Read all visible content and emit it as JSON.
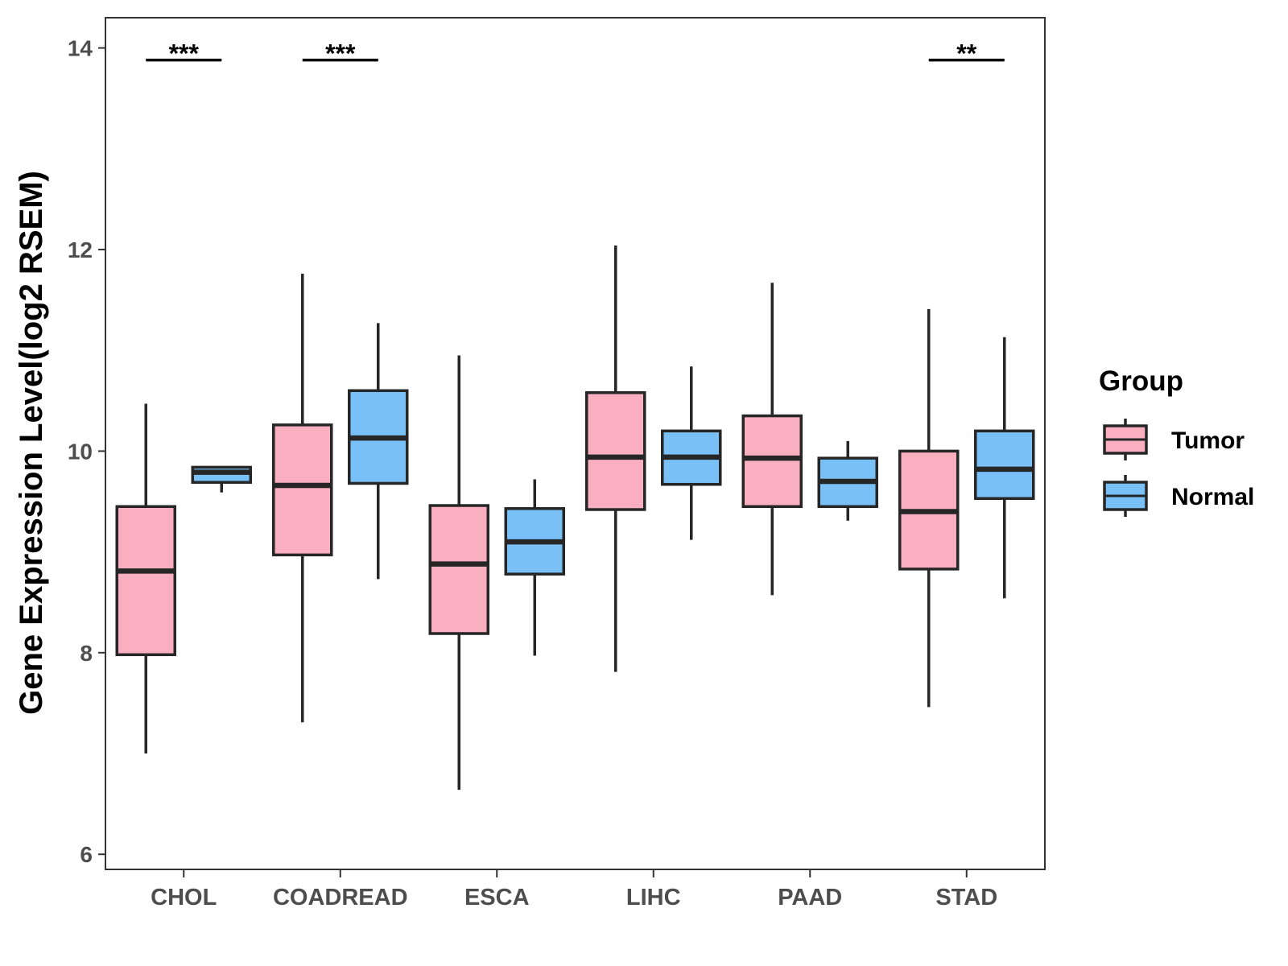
{
  "chart_data": {
    "type": "boxplot",
    "title": "",
    "xlabel": "",
    "ylabel": "Gene Expression Level(log2 RSEM)",
    "ylim": [
      5.85,
      14.3
    ],
    "yticks": [
      6,
      8,
      10,
      12,
      14
    ],
    "categories": [
      "CHOL",
      "COADREAD",
      "ESCA",
      "LIHC",
      "PAAD",
      "STAD"
    ],
    "legend": {
      "title": "Group",
      "position": "right",
      "entries": [
        "Tumor",
        "Normal"
      ]
    },
    "colors": {
      "Tumor": "#f9afc0",
      "Normal": "#78c0f6",
      "outline": "#262626"
    },
    "series": [
      {
        "name": "Tumor",
        "boxes": [
          {
            "min": 7.0,
            "q1": 7.98,
            "median": 8.81,
            "q3": 9.45,
            "max": 10.47
          },
          {
            "min": 7.31,
            "q1": 8.97,
            "median": 9.66,
            "q3": 10.26,
            "max": 11.76
          },
          {
            "min": 6.64,
            "q1": 8.19,
            "median": 8.88,
            "q3": 9.46,
            "max": 10.95
          },
          {
            "min": 7.81,
            "q1": 9.42,
            "median": 9.94,
            "q3": 10.58,
            "max": 12.04
          },
          {
            "min": 8.57,
            "q1": 9.45,
            "median": 9.93,
            "q3": 10.35,
            "max": 11.67
          },
          {
            "min": 7.46,
            "q1": 8.83,
            "median": 9.4,
            "q3": 10.0,
            "max": 11.41
          }
        ]
      },
      {
        "name": "Normal",
        "boxes": [
          {
            "min": 9.59,
            "q1": 9.69,
            "median": 9.79,
            "q3": 9.84,
            "max": 9.84
          },
          {
            "min": 8.73,
            "q1": 9.68,
            "median": 10.13,
            "q3": 10.6,
            "max": 11.27
          },
          {
            "min": 7.97,
            "q1": 8.78,
            "median": 9.1,
            "q3": 9.43,
            "max": 9.72
          },
          {
            "min": 9.12,
            "q1": 9.67,
            "median": 9.94,
            "q3": 10.2,
            "max": 10.84
          },
          {
            "min": 9.31,
            "q1": 9.45,
            "median": 9.7,
            "q3": 9.93,
            "max": 10.1
          },
          {
            "min": 8.54,
            "q1": 9.53,
            "median": 9.82,
            "q3": 10.2,
            "max": 11.13
          }
        ]
      }
    ],
    "significance": [
      {
        "category": "CHOL",
        "label": "***",
        "y": 13.88
      },
      {
        "category": "COADREAD",
        "label": "***",
        "y": 13.88
      },
      {
        "category": "STAD",
        "label": "**",
        "y": 13.88
      }
    ]
  }
}
